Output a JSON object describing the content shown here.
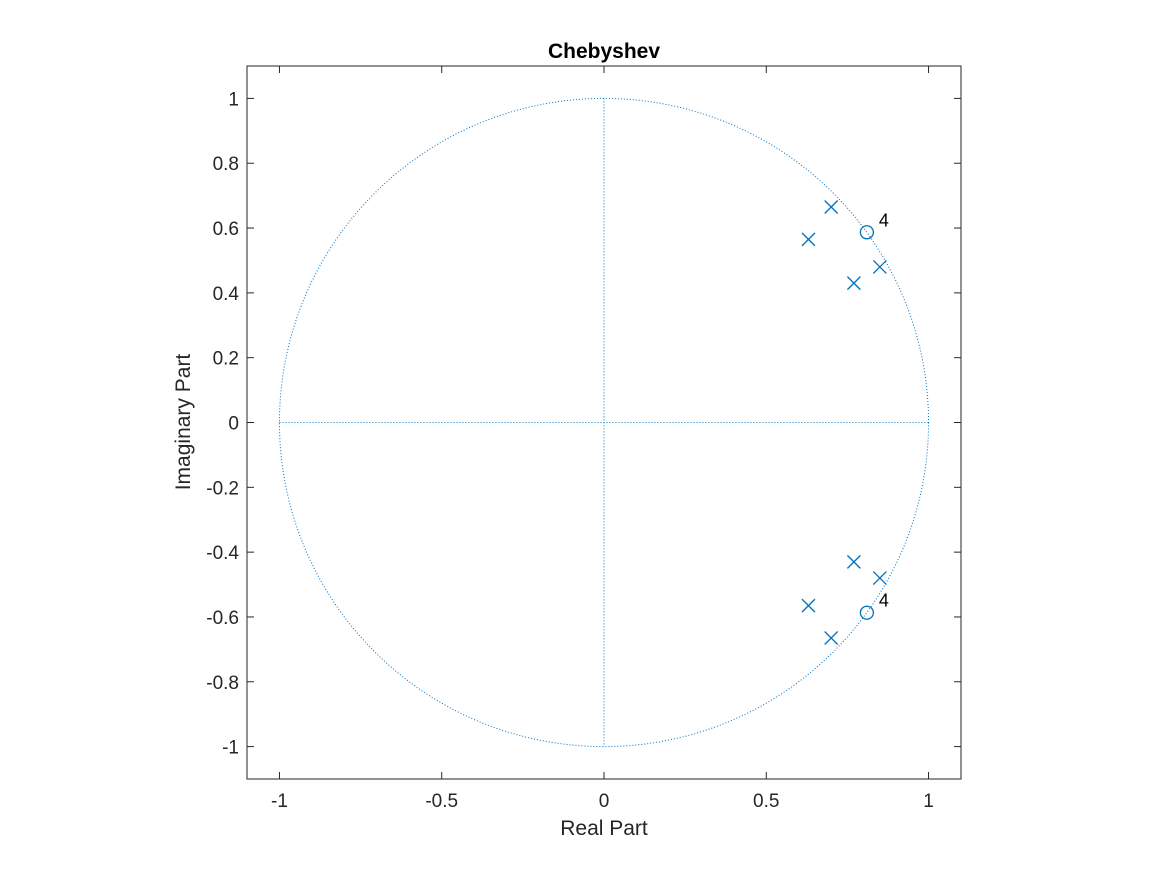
{
  "chart_data": {
    "type": "scatter",
    "title": "Chebyshev",
    "xlabel": "Real Part",
    "ylabel": "Imaginary Part",
    "xlim": [
      -1.1,
      1.1
    ],
    "ylim": [
      -1.1,
      1.1
    ],
    "grid": false,
    "x_ticks": [
      -1,
      -0.5,
      0,
      0.5,
      1
    ],
    "x_tick_labels": [
      "-1",
      "-0.5",
      "0",
      "0.5",
      "1"
    ],
    "y_ticks": [
      -1,
      -0.8,
      -0.6,
      -0.4,
      -0.2,
      0,
      0.2,
      0.4,
      0.6,
      0.8,
      1
    ],
    "y_tick_labels": [
      "-1",
      "-0.8",
      "-0.6",
      "-0.4",
      "-0.2",
      "0",
      "0.2",
      "0.4",
      "0.6",
      "0.8",
      "1"
    ],
    "unit_circle": true,
    "series": [
      {
        "name": "Zeros",
        "marker": "circle",
        "points": [
          {
            "x": 0.81,
            "y": 0.587,
            "multiplicity": "4"
          },
          {
            "x": 0.81,
            "y": -0.587,
            "multiplicity": "4"
          }
        ]
      },
      {
        "name": "Poles",
        "marker": "x",
        "points": [
          {
            "x": 0.7,
            "y": 0.665
          },
          {
            "x": 0.63,
            "y": 0.565
          },
          {
            "x": 0.85,
            "y": 0.48
          },
          {
            "x": 0.77,
            "y": 0.43
          },
          {
            "x": 0.7,
            "y": -0.665
          },
          {
            "x": 0.63,
            "y": -0.565
          },
          {
            "x": 0.85,
            "y": -0.48
          },
          {
            "x": 0.77,
            "y": -0.43
          }
        ]
      }
    ],
    "colors": {
      "marker": "#0072BD",
      "axes": "#262626",
      "reference_lines": "#0072BD"
    }
  }
}
